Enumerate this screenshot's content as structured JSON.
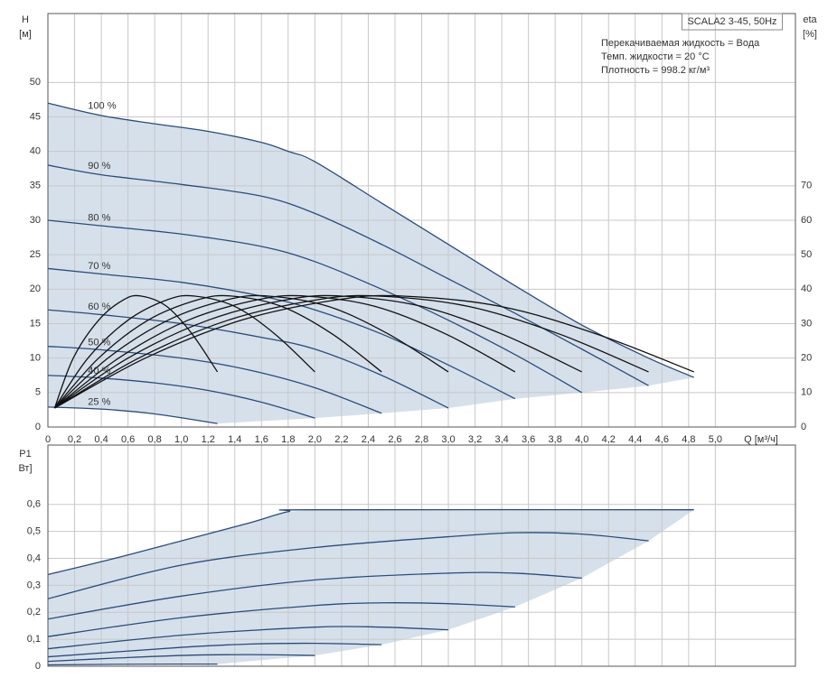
{
  "chart_data": [
    {
      "type": "line",
      "title": "SCALA2 3-45, 50Hz",
      "annotations": [
        "Перекачиваемая жидкость = Вода",
        "Темп. жидкости = 20 °C",
        "Плотность = 998.2 кг/м³"
      ],
      "x_label": "Q [м³/ч]",
      "y_label": "H",
      "y_unit": "[м]",
      "y2_label": "eta",
      "y2_unit": "[%]",
      "xlim": [
        0,
        5.6
      ],
      "xticks": [
        0,
        {
          "value": 0.2,
          "label": "0,2"
        },
        {
          "value": 0.4,
          "label": "0,4"
        },
        {
          "value": 0.6,
          "label": "0,6"
        },
        {
          "value": 0.8,
          "label": "0,8"
        },
        {
          "value": 1.0,
          "label": "1,0"
        },
        {
          "value": 1.2,
          "label": "1,2"
        },
        {
          "value": 1.4,
          "label": "1,4"
        },
        {
          "value": 1.6,
          "label": "1,6"
        },
        {
          "value": 1.8,
          "label": "1,8"
        },
        {
          "value": 2.0,
          "label": "2,0"
        },
        {
          "value": 2.2,
          "label": "2,2"
        },
        {
          "value": 2.4,
          "label": "2,4"
        },
        {
          "value": 2.6,
          "label": "2,6"
        },
        {
          "value": 2.8,
          "label": "2,8"
        },
        {
          "value": 3.0,
          "label": "3,0"
        },
        {
          "value": 3.2,
          "label": "3,2"
        },
        {
          "value": 3.4,
          "label": "3,4"
        },
        {
          "value": 3.6,
          "label": "3,6"
        },
        {
          "value": 3.8,
          "label": "3,8"
        },
        {
          "value": 4.0,
          "label": "4,0"
        },
        {
          "value": 4.2,
          "label": "4,2"
        },
        {
          "value": 4.4,
          "label": "4,4"
        },
        {
          "value": 4.6,
          "label": "4,6"
        },
        {
          "value": 4.8,
          "label": "4,8"
        },
        {
          "value": 5.0,
          "label": "5,0"
        }
      ],
      "ylim": [
        0,
        60
      ],
      "yticks": [
        0,
        5,
        10,
        15,
        20,
        25,
        30,
        35,
        40,
        45,
        50
      ],
      "y2lim": [
        0,
        120
      ],
      "y2ticks": [
        0,
        10,
        20,
        30,
        40,
        50,
        60,
        70
      ],
      "grid": true,
      "fill": "#d5e0eb",
      "series": [
        {
          "name": "100 %",
          "color": "#2b4b7c",
          "x": [
            0,
            0.4,
            0.8,
            1.2,
            1.6,
            1.8,
            2.0,
            2.5,
            3.0,
            3.5,
            4.0,
            4.5,
            4.84
          ],
          "values": [
            47,
            45.2,
            44,
            42.9,
            41.3,
            40,
            38.5,
            32.5,
            26.5,
            20.5,
            14.8,
            10,
            7.2
          ]
        },
        {
          "name": "90 %",
          "color": "#2b4b7c",
          "x": [
            0,
            0.4,
            1.0,
            1.6,
            2.0,
            2.5,
            3.0,
            3.5,
            4.0,
            4.5
          ],
          "values": [
            38,
            36.6,
            35.2,
            33.5,
            31,
            26.5,
            21.5,
            16.5,
            11.3,
            6
          ]
        },
        {
          "name": "80 %",
          "color": "#2b4b7c",
          "x": [
            0,
            0.4,
            1.0,
            1.6,
            2.0,
            2.5,
            3.0,
            3.5,
            4.0
          ],
          "values": [
            30,
            29.2,
            28,
            26.2,
            24,
            20,
            15.5,
            10.5,
            5
          ]
        },
        {
          "name": "70 %",
          "color": "#2b4b7c",
          "x": [
            0,
            0.4,
            1.0,
            1.6,
            2.0,
            2.5,
            3.0,
            3.5
          ],
          "values": [
            23,
            22.2,
            21,
            19,
            17,
            13.5,
            9,
            4.1
          ]
        },
        {
          "name": "60 %",
          "color": "#2b4b7c",
          "x": [
            0,
            0.4,
            1.0,
            1.6,
            2.0,
            2.5,
            3.0
          ],
          "values": [
            17,
            16.3,
            15,
            13,
            11.3,
            7.5,
            2.75
          ]
        },
        {
          "name": "50 %",
          "color": "#2b4b7c",
          "x": [
            0,
            0.4,
            1.0,
            1.5,
            2.0,
            2.5
          ],
          "values": [
            11.7,
            11.2,
            10,
            8.3,
            5.7,
            2.0
          ]
        },
        {
          "name": "40 %",
          "color": "#2b4b7c",
          "x": [
            0,
            0.4,
            0.8,
            1.2,
            1.6,
            2.0
          ],
          "values": [
            7.5,
            7.1,
            6.4,
            5.3,
            3.6,
            1.3
          ]
        },
        {
          "name": "25 %",
          "color": "#2b4b7c",
          "x": [
            0,
            0.4,
            0.8,
            1.27
          ],
          "values": [
            2.9,
            2.6,
            1.9,
            0.5
          ]
        },
        {
          "color": "#111111",
          "axis": "y2",
          "x": [
            0.05,
            0.19,
            0.38,
            0.57,
            0.7,
            0.89,
            1.08,
            1.27
          ],
          "values": [
            5.5,
            20,
            31,
            37,
            38,
            35,
            27,
            16
          ]
        },
        {
          "color": "#111111",
          "axis": "y2",
          "x": [
            0.05,
            0.3,
            0.6,
            0.9,
            1.1,
            1.4,
            1.7,
            2.0
          ],
          "values": [
            5.5,
            20,
            31,
            37,
            38,
            35,
            27,
            16
          ]
        },
        {
          "color": "#111111",
          "axis": "y2",
          "x": [
            0.05,
            0.38,
            0.75,
            1.13,
            1.38,
            1.75,
            2.13,
            2.5
          ],
          "values": [
            5.5,
            20,
            31,
            37,
            38,
            35,
            27,
            16
          ]
        },
        {
          "color": "#111111",
          "axis": "y2",
          "x": [
            0.05,
            0.45,
            0.9,
            1.35,
            1.65,
            2.1,
            2.55,
            3.0
          ],
          "values": [
            5.5,
            20,
            31,
            37,
            38,
            35,
            27,
            16
          ]
        },
        {
          "color": "#111111",
          "axis": "y2",
          "x": [
            0.05,
            0.53,
            1.05,
            1.58,
            1.93,
            2.45,
            2.98,
            3.5
          ],
          "values": [
            5.5,
            20,
            31,
            37,
            38,
            35,
            27,
            16
          ]
        },
        {
          "color": "#111111",
          "axis": "y2",
          "x": [
            0.05,
            0.6,
            1.2,
            1.8,
            2.2,
            2.8,
            3.4,
            4.0
          ],
          "values": [
            5.5,
            20,
            31,
            37,
            38,
            35,
            27,
            16
          ]
        },
        {
          "color": "#111111",
          "axis": "y2",
          "x": [
            0.05,
            0.68,
            1.35,
            2.03,
            2.48,
            3.15,
            3.83,
            4.5
          ],
          "values": [
            5.5,
            20,
            31,
            37,
            38,
            35,
            27,
            16
          ]
        },
        {
          "color": "#111111",
          "axis": "y2",
          "x": [
            0.05,
            0.73,
            1.45,
            2.18,
            2.66,
            3.39,
            4.11,
            4.84
          ],
          "values": [
            5.5,
            20,
            31,
            37,
            38,
            35,
            27,
            16
          ]
        }
      ]
    },
    {
      "type": "line",
      "y_label": "P1",
      "y_unit": "Вт]",
      "xlim": [
        0,
        5.6
      ],
      "ylim": [
        0,
        0.82
      ],
      "yticks": [
        0,
        {
          "value": 0.1,
          "label": "0,1"
        },
        {
          "value": 0.2,
          "label": "0,2"
        },
        {
          "value": 0.3,
          "label": "0,3"
        },
        {
          "value": 0.4,
          "label": "0,4"
        },
        {
          "value": 0.5,
          "label": "0,5"
        },
        {
          "value": 0.6,
          "label": "0,6"
        }
      ],
      "grid": true,
      "fill": "#d5e0eb",
      "series": [
        {
          "color": "#2b4b7c",
          "x": [
            0,
            0.5,
            1.0,
            1.5,
            1.8,
            2.0,
            4.84
          ],
          "values": [
            0.34,
            0.4,
            0.465,
            0.53,
            0.573,
            0.58,
            0.58
          ]
        },
        {
          "color": "#2b4b7c",
          "x": [
            0,
            1.0,
            2.0,
            3.0,
            3.5,
            4.0,
            4.5
          ],
          "values": [
            0.25,
            0.375,
            0.44,
            0.48,
            0.495,
            0.49,
            0.465
          ]
        },
        {
          "color": "#2b4b7c",
          "x": [
            0,
            1.0,
            2.0,
            3.0,
            3.5,
            4.0
          ],
          "values": [
            0.175,
            0.26,
            0.32,
            0.345,
            0.345,
            0.327
          ]
        },
        {
          "color": "#2b4b7c",
          "x": [
            0,
            1.0,
            2.0,
            2.5,
            3.0,
            3.5
          ],
          "values": [
            0.11,
            0.18,
            0.225,
            0.235,
            0.232,
            0.22
          ]
        },
        {
          "color": "#2b4b7c",
          "x": [
            0,
            1.0,
            2.0,
            2.5,
            3.0
          ],
          "values": [
            0.065,
            0.115,
            0.145,
            0.145,
            0.135
          ]
        },
        {
          "color": "#2b4b7c",
          "x": [
            0,
            1.0,
            1.5,
            2.0,
            2.5
          ],
          "values": [
            0.035,
            0.07,
            0.082,
            0.085,
            0.08
          ]
        },
        {
          "color": "#2b4b7c",
          "x": [
            0,
            0.5,
            1.0,
            1.5,
            2.0
          ],
          "values": [
            0.018,
            0.03,
            0.04,
            0.043,
            0.04
          ]
        },
        {
          "color": "#2b4b7c",
          "x": [
            0,
            0.5,
            1.0,
            1.27
          ],
          "values": [
            0.005,
            0.007,
            0.008,
            0.008
          ]
        }
      ]
    }
  ]
}
